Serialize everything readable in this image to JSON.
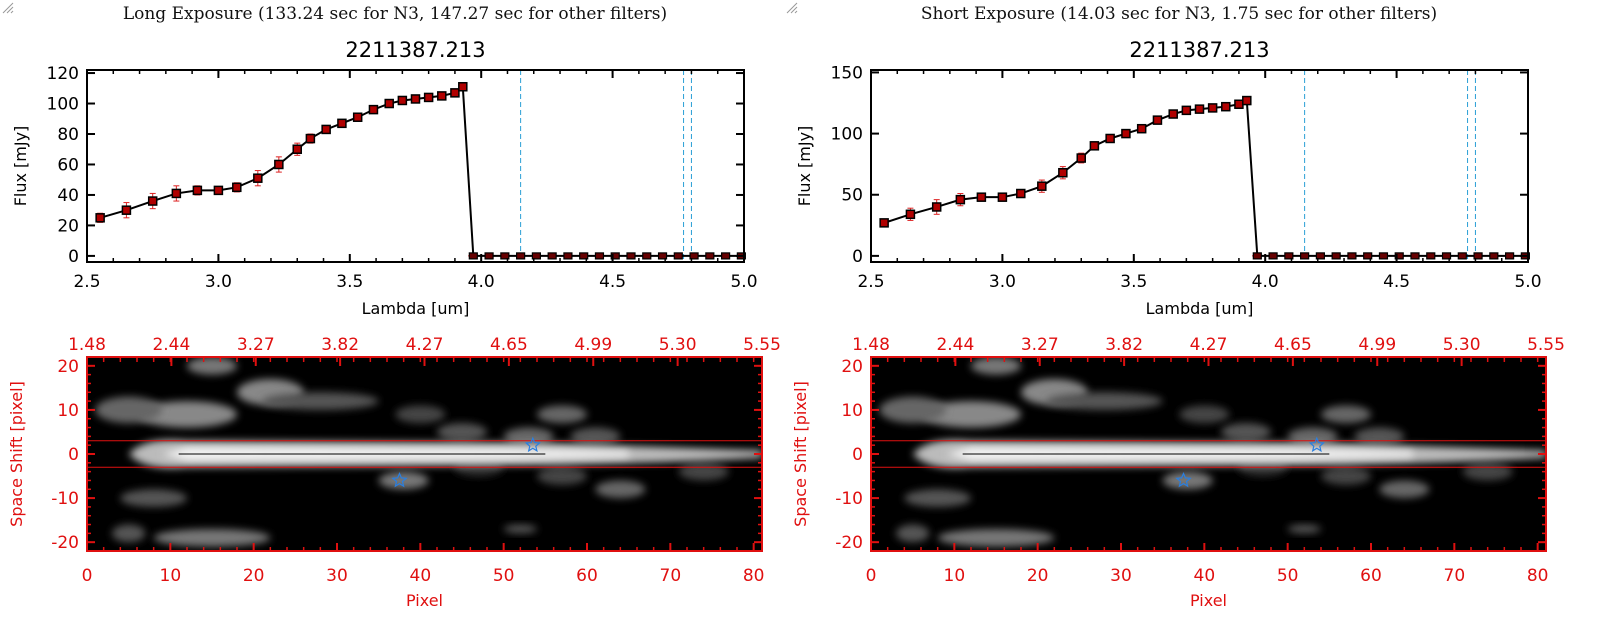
{
  "panels": [
    {
      "title": "Long Exposure (133.24 sec for N3, 147.27 sec for other filters)",
      "resize_grip": "resize-grip-icon"
    },
    {
      "title": "Short Exposure (14.03 sec for N3, 1.75 sec for other filters)",
      "resize_grip": "resize-grip-icon"
    }
  ],
  "chart_data": [
    {
      "type": "line",
      "title": "2211387.213",
      "xlabel": "Lambda [um]",
      "ylabel": "Flux [mJy]",
      "xlim": [
        2.5,
        5.0
      ],
      "ylim": [
        -4,
        122
      ],
      "xticks": [
        "2.5",
        "3.0",
        "3.5",
        "4.0",
        "4.5",
        "5.0"
      ],
      "yticks": [
        "0",
        "20",
        "40",
        "60",
        "80",
        "100",
        "120"
      ],
      "x": [
        2.55,
        2.65,
        2.75,
        2.84,
        2.92,
        3.0,
        3.07,
        3.15,
        3.23,
        3.3,
        3.35,
        3.41,
        3.47,
        3.53,
        3.59,
        3.65,
        3.7,
        3.75,
        3.8,
        3.85,
        3.9,
        3.93
      ],
      "series": [
        {
          "name": "flux",
          "values": [
            25,
            30,
            36,
            41,
            43,
            43,
            45,
            51,
            60,
            70,
            77,
            83,
            87,
            91,
            96,
            100,
            102,
            103,
            104,
            105,
            107,
            111
          ],
          "errors": [
            3,
            5,
            5,
            5,
            3,
            2,
            3,
            5,
            5,
            4,
            3,
            2,
            2,
            1,
            1,
            1,
            1,
            1,
            1,
            1,
            1,
            1
          ]
        }
      ],
      "zero_points_x": [
        3.97,
        4.03,
        4.09,
        4.15,
        4.21,
        4.27,
        4.33,
        4.39,
        4.45,
        4.51,
        4.57,
        4.63,
        4.69,
        4.75,
        4.81,
        4.87,
        4.93,
        4.99
      ],
      "vlines": [
        4.15,
        4.77,
        4.8
      ],
      "grid": false,
      "colors": {
        "line": "#000000",
        "marker": "#b00000",
        "error": "#dd2222",
        "vline": "#2a9fd6"
      }
    },
    {
      "type": "heatmap",
      "xlabel": "Pixel",
      "ylabel": "Space Shift [pixel]",
      "xlim": [
        0,
        81
      ],
      "ylim": [
        -22,
        22
      ],
      "xticks": [
        "0",
        "10",
        "20",
        "30",
        "40",
        "50",
        "60",
        "70",
        "80"
      ],
      "yticks": [
        "-20",
        "-10",
        "0",
        "10",
        "20"
      ],
      "top_ticks": [
        "1.48",
        "2.44",
        "3.27",
        "3.82",
        "4.27",
        "4.65",
        "4.99",
        "5.30",
        "5.55"
      ],
      "aperture": [
        -3,
        3
      ],
      "stars": [
        {
          "x": 53.5,
          "y": 2
        },
        {
          "x": 37.5,
          "y": -6
        }
      ],
      "colors": {
        "axis": "#e01010",
        "star": "#2a7fe0"
      }
    },
    {
      "type": "line",
      "title": "2211387.213",
      "xlabel": "Lambda [um]",
      "ylabel": "Flux [mJy]",
      "xlim": [
        2.5,
        5.0
      ],
      "ylim": [
        -5,
        152
      ],
      "xticks": [
        "2.5",
        "3.0",
        "3.5",
        "4.0",
        "4.5",
        "5.0"
      ],
      "yticks": [
        "0",
        "50",
        "100",
        "150"
      ],
      "x": [
        2.55,
        2.65,
        2.75,
        2.84,
        2.92,
        3.0,
        3.07,
        3.15,
        3.23,
        3.3,
        3.35,
        3.41,
        3.47,
        3.53,
        3.59,
        3.65,
        3.7,
        3.75,
        3.8,
        3.85,
        3.9,
        3.93
      ],
      "series": [
        {
          "name": "flux",
          "values": [
            27,
            34,
            40,
            46,
            48,
            48,
            51,
            57,
            68,
            80,
            90,
            96,
            100,
            104,
            111,
            116,
            119,
            120,
            121,
            122,
            124,
            127
          ],
          "errors": [
            3,
            5,
            6,
            5,
            3,
            2,
            3,
            5,
            5,
            4,
            3,
            2,
            2,
            1,
            1,
            1,
            1,
            1,
            1,
            1,
            1,
            1
          ]
        }
      ],
      "zero_points_x": [
        3.97,
        4.03,
        4.09,
        4.15,
        4.21,
        4.27,
        4.33,
        4.39,
        4.45,
        4.51,
        4.57,
        4.63,
        4.69,
        4.75,
        4.81,
        4.87,
        4.93,
        4.99
      ],
      "vlines": [
        4.15,
        4.77,
        4.8
      ],
      "grid": false,
      "colors": {
        "line": "#000000",
        "marker": "#b00000",
        "error": "#dd2222",
        "vline": "#2a9fd6"
      }
    },
    {
      "type": "heatmap",
      "xlabel": "Pixel",
      "ylabel": "Space Shift [pixel]",
      "xlim": [
        0,
        81
      ],
      "ylim": [
        -22,
        22
      ],
      "xticks": [
        "0",
        "10",
        "20",
        "30",
        "40",
        "50",
        "60",
        "70",
        "80"
      ],
      "yticks": [
        "-20",
        "-10",
        "0",
        "10",
        "20"
      ],
      "top_ticks": [
        "1.48",
        "2.44",
        "3.27",
        "3.82",
        "4.27",
        "4.65",
        "4.99",
        "5.30",
        "5.55"
      ],
      "aperture": [
        -3,
        3
      ],
      "stars": [
        {
          "x": 53.5,
          "y": 2
        },
        {
          "x": 37.5,
          "y": -6
        }
      ],
      "colors": {
        "axis": "#e01010",
        "star": "#2a7fe0"
      }
    }
  ]
}
